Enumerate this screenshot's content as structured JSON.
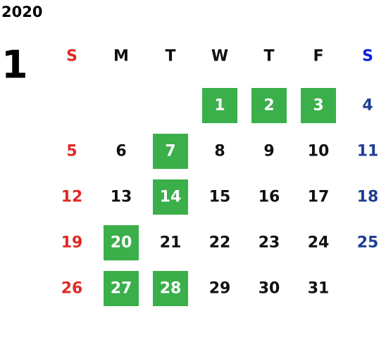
{
  "year": "2020",
  "month": "1",
  "weekdays": [
    "S",
    "M",
    "T",
    "W",
    "T",
    "F",
    "S"
  ],
  "colors": {
    "text": "#111111",
    "sunday": "#e02a25",
    "saturday": "#1f3f94",
    "saturday_header": "#0a1ee0",
    "highlight": "#3aaf4a",
    "highlight_text": "#ffffff"
  },
  "weeks": [
    [
      null,
      null,
      null,
      {
        "day": "1",
        "highlight": true
      },
      {
        "day": "2",
        "highlight": true
      },
      {
        "day": "3",
        "highlight": true
      },
      {
        "day": "4",
        "highlight": false
      }
    ],
    [
      {
        "day": "5",
        "highlight": false
      },
      {
        "day": "6",
        "highlight": false
      },
      {
        "day": "7",
        "highlight": true
      },
      {
        "day": "8",
        "highlight": false
      },
      {
        "day": "9",
        "highlight": false
      },
      {
        "day": "10",
        "highlight": false
      },
      {
        "day": "11",
        "highlight": false
      }
    ],
    [
      {
        "day": "12",
        "highlight": false
      },
      {
        "day": "13",
        "highlight": false
      },
      {
        "day": "14",
        "highlight": true
      },
      {
        "day": "15",
        "highlight": false
      },
      {
        "day": "16",
        "highlight": false
      },
      {
        "day": "17",
        "highlight": false
      },
      {
        "day": "18",
        "highlight": false
      }
    ],
    [
      {
        "day": "19",
        "highlight": false
      },
      {
        "day": "20",
        "highlight": true
      },
      {
        "day": "21",
        "highlight": false
      },
      {
        "day": "22",
        "highlight": false
      },
      {
        "day": "23",
        "highlight": false
      },
      {
        "day": "24",
        "highlight": false
      },
      {
        "day": "25",
        "highlight": false
      }
    ],
    [
      {
        "day": "26",
        "highlight": false
      },
      {
        "day": "27",
        "highlight": true
      },
      {
        "day": "28",
        "highlight": true
      },
      {
        "day": "29",
        "highlight": false
      },
      {
        "day": "30",
        "highlight": false
      },
      {
        "day": "31",
        "highlight": false
      },
      null
    ]
  ]
}
